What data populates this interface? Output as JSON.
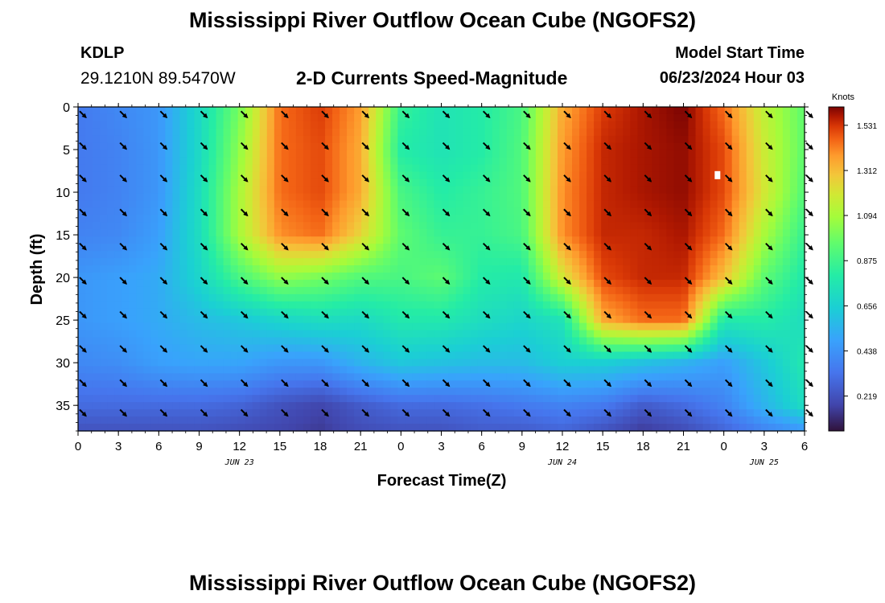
{
  "header": {
    "title": "Mississippi River Outflow Ocean Cube (NGOFS2)",
    "station_id": "KDLP",
    "station_coords": "29.1210N  89.5470W",
    "subtitle": "2-D Currents Speed-Magnitude",
    "model_start_label": "Model Start Time",
    "model_start_value": "06/23/2024 Hour 03"
  },
  "footer": {
    "title": "Mississippi River Outflow Ocean Cube (NGOFS2)"
  },
  "chart_data": {
    "type": "heatmap",
    "xlabel": "Forecast Time(Z)",
    "ylabel": "Depth (ft)",
    "x_unit": "hours since Jun 23 00Z",
    "xlim": [
      0,
      54
    ],
    "ylim": [
      0,
      38
    ],
    "y_inverted": true,
    "x_ticks": [
      0,
      3,
      6,
      9,
      12,
      15,
      18,
      21,
      24,
      27,
      30,
      33,
      36,
      39,
      42,
      45,
      48,
      51,
      54
    ],
    "x_tick_labels": [
      "0",
      "3",
      "6",
      "9",
      "12",
      "15",
      "18",
      "21",
      "0",
      "3",
      "6",
      "9",
      "12",
      "15",
      "18",
      "21",
      "0",
      "3",
      "6"
    ],
    "date_labels": [
      {
        "x": 12,
        "text": "JUN 23"
      },
      {
        "x": 36,
        "text": "JUN 24"
      },
      {
        "x": 51,
        "text": "JUN 25"
      }
    ],
    "y_ticks": [
      0,
      5,
      10,
      15,
      20,
      25,
      30,
      35
    ],
    "colorbar": {
      "label": "Knots",
      "min": 0.05,
      "max": 1.62,
      "ticks": [
        0.219,
        0.438,
        0.656,
        0.875,
        1.094,
        1.312,
        1.531
      ],
      "tick_labels": [
        "0.219",
        "0.438",
        "0.656",
        "0.875",
        "1.094",
        "1.312",
        "1.531"
      ]
    },
    "grid_depths": [
      0,
      5,
      10,
      15,
      20,
      25,
      30,
      35,
      38
    ],
    "grid_times": [
      0,
      3,
      6,
      9,
      12,
      15,
      18,
      21,
      24,
      27,
      30,
      33,
      36,
      39,
      42,
      45,
      48,
      51,
      54
    ],
    "speed_knots": [
      [
        0.35,
        0.4,
        0.45,
        0.7,
        1.0,
        1.45,
        1.52,
        1.38,
        0.85,
        0.75,
        0.8,
        0.9,
        1.35,
        1.52,
        1.58,
        1.62,
        1.45,
        1.15,
        0.95
      ],
      [
        0.35,
        0.38,
        0.45,
        0.7,
        1.05,
        1.45,
        1.5,
        1.35,
        0.8,
        0.75,
        0.8,
        0.92,
        1.38,
        1.55,
        1.58,
        1.6,
        1.5,
        1.18,
        0.95
      ],
      [
        0.35,
        0.38,
        0.45,
        0.72,
        1.1,
        1.45,
        1.5,
        1.35,
        0.9,
        0.8,
        0.85,
        0.92,
        1.4,
        1.55,
        1.58,
        1.6,
        1.5,
        1.2,
        0.92
      ],
      [
        0.38,
        0.4,
        0.48,
        0.72,
        1.1,
        1.4,
        1.45,
        1.25,
        0.95,
        0.85,
        0.85,
        0.9,
        1.4,
        1.55,
        1.55,
        1.58,
        1.45,
        1.1,
        0.85
      ],
      [
        0.45,
        0.48,
        0.52,
        0.68,
        0.9,
        1.05,
        1.0,
        0.92,
        0.9,
        0.95,
        0.8,
        0.78,
        1.2,
        1.5,
        1.55,
        1.55,
        1.3,
        0.95,
        0.78
      ],
      [
        0.45,
        0.48,
        0.52,
        0.58,
        0.62,
        0.68,
        0.72,
        0.7,
        0.78,
        0.78,
        0.72,
        0.68,
        0.75,
        1.35,
        1.45,
        1.45,
        0.78,
        0.8,
        0.72
      ],
      [
        0.4,
        0.42,
        0.48,
        0.5,
        0.5,
        0.45,
        0.45,
        0.55,
        0.62,
        0.6,
        0.58,
        0.58,
        0.65,
        0.65,
        0.6,
        0.55,
        0.48,
        0.62,
        0.78
      ],
      [
        0.3,
        0.3,
        0.3,
        0.3,
        0.28,
        0.22,
        0.18,
        0.25,
        0.3,
        0.3,
        0.32,
        0.35,
        0.38,
        0.35,
        0.25,
        0.3,
        0.38,
        0.55,
        0.72
      ],
      [
        0.22,
        0.22,
        0.22,
        0.22,
        0.2,
        0.18,
        0.15,
        0.2,
        0.22,
        0.22,
        0.25,
        0.25,
        0.28,
        0.22,
        0.15,
        0.2,
        0.28,
        0.38,
        0.45
      ]
    ],
    "arrow_rows_depth": [
      0.5,
      4.2,
      8.0,
      12.0,
      16.0,
      20.0,
      24.0,
      28.0,
      32.0,
      35.5
    ],
    "arrow_direction_deg": 135,
    "highlight_marker": {
      "x": 47.5,
      "y": 8
    }
  }
}
